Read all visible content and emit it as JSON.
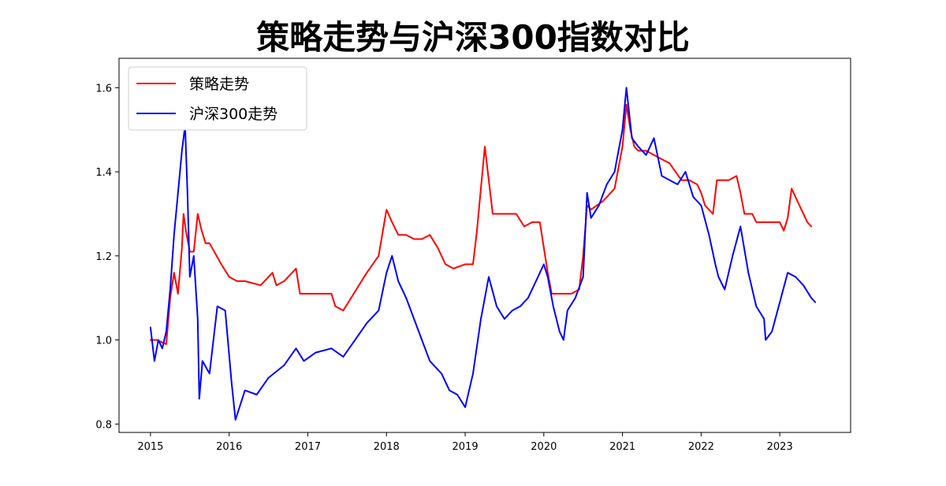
{
  "chart_data": {
    "type": "line",
    "title": "策略走势与沪深300指数对比",
    "xlabel": "",
    "ylabel": "",
    "xlim": [
      2014.6,
      2023.9
    ],
    "ylim": [
      0.78,
      1.67
    ],
    "x_ticks": [
      "2015",
      "2016",
      "2017",
      "2018",
      "2019",
      "2020",
      "2021",
      "2022",
      "2023"
    ],
    "y_ticks": [
      "0.8",
      "1.0",
      "1.2",
      "1.4",
      "1.6"
    ],
    "grid": false,
    "legend_position": "top-left",
    "series": [
      {
        "name": "策略走势",
        "color": "#ff0000",
        "x": [
          2015.0,
          2015.08,
          2015.2,
          2015.25,
          2015.3,
          2015.35,
          2015.4,
          2015.42,
          2015.45,
          2015.5,
          2015.55,
          2015.6,
          2015.65,
          2015.7,
          2015.75,
          2015.9,
          2016.0,
          2016.1,
          2016.2,
          2016.4,
          2016.55,
          2016.6,
          2016.7,
          2016.85,
          2016.9,
          2017.0,
          2017.3,
          2017.35,
          2017.45,
          2017.55,
          2017.65,
          2017.75,
          2017.9,
          2018.0,
          2018.07,
          2018.15,
          2018.25,
          2018.35,
          2018.45,
          2018.55,
          2018.65,
          2018.75,
          2018.85,
          2019.0,
          2019.1,
          2019.15,
          2019.2,
          2019.25,
          2019.3,
          2019.35,
          2019.5,
          2019.65,
          2019.75,
          2019.85,
          2019.95,
          2020.05,
          2020.1,
          2020.2,
          2020.35,
          2020.45,
          2020.5,
          2020.55,
          2020.6,
          2020.75,
          2020.9,
          2021.0,
          2021.05,
          2021.1,
          2021.15,
          2021.2,
          2021.3,
          2021.4,
          2021.5,
          2021.6,
          2021.75,
          2021.85,
          2021.95,
          2022.0,
          2022.05,
          2022.15,
          2022.2,
          2022.35,
          2022.45,
          2022.5,
          2022.55,
          2022.65,
          2022.7,
          2022.85,
          2022.95,
          2023.0,
          2023.05,
          2023.1,
          2023.15,
          2023.25,
          2023.35,
          2023.4
        ],
        "values": [
          1.0,
          1.0,
          0.99,
          1.1,
          1.16,
          1.11,
          1.22,
          1.3,
          1.26,
          1.21,
          1.21,
          1.3,
          1.26,
          1.23,
          1.23,
          1.18,
          1.15,
          1.14,
          1.14,
          1.13,
          1.16,
          1.13,
          1.14,
          1.17,
          1.11,
          1.11,
          1.11,
          1.08,
          1.07,
          1.1,
          1.13,
          1.16,
          1.2,
          1.31,
          1.28,
          1.25,
          1.25,
          1.24,
          1.24,
          1.25,
          1.22,
          1.18,
          1.17,
          1.18,
          1.18,
          1.26,
          1.36,
          1.46,
          1.38,
          1.3,
          1.3,
          1.3,
          1.27,
          1.28,
          1.28,
          1.16,
          1.11,
          1.11,
          1.11,
          1.12,
          1.2,
          1.32,
          1.31,
          1.33,
          1.36,
          1.46,
          1.56,
          1.5,
          1.46,
          1.45,
          1.45,
          1.44,
          1.43,
          1.42,
          1.38,
          1.38,
          1.37,
          1.35,
          1.32,
          1.3,
          1.38,
          1.38,
          1.39,
          1.35,
          1.3,
          1.3,
          1.28,
          1.28,
          1.28,
          1.28,
          1.26,
          1.29,
          1.36,
          1.32,
          1.28,
          1.27
        ]
      },
      {
        "name": "沪深300走势",
        "color": "#0000ff",
        "x": [
          2015.0,
          2015.05,
          2015.1,
          2015.15,
          2015.2,
          2015.25,
          2015.3,
          2015.35,
          2015.4,
          2015.44,
          2015.47,
          2015.5,
          2015.55,
          2015.6,
          2015.62,
          2015.66,
          2015.75,
          2015.85,
          2015.95,
          2016.03,
          2016.08,
          2016.2,
          2016.35,
          2016.5,
          2016.7,
          2016.85,
          2016.95,
          2017.1,
          2017.3,
          2017.45,
          2017.6,
          2017.75,
          2017.9,
          2018.0,
          2018.07,
          2018.15,
          2018.25,
          2018.35,
          2018.45,
          2018.55,
          2018.7,
          2018.8,
          2018.9,
          2019.0,
          2019.1,
          2019.2,
          2019.3,
          2019.4,
          2019.5,
          2019.6,
          2019.7,
          2019.8,
          2019.9,
          2020.0,
          2020.05,
          2020.12,
          2020.2,
          2020.25,
          2020.3,
          2020.4,
          2020.5,
          2020.55,
          2020.6,
          2020.7,
          2020.8,
          2020.9,
          2021.0,
          2021.05,
          2021.12,
          2021.2,
          2021.3,
          2021.4,
          2021.5,
          2021.6,
          2021.7,
          2021.8,
          2021.9,
          2022.0,
          2022.1,
          2022.18,
          2022.22,
          2022.3,
          2022.4,
          2022.5,
          2022.6,
          2022.7,
          2022.8,
          2022.82,
          2022.9,
          2023.0,
          2023.1,
          2023.2,
          2023.3,
          2023.4,
          2023.45
        ],
        "values": [
          1.03,
          0.95,
          1.0,
          0.98,
          1.02,
          1.12,
          1.25,
          1.35,
          1.45,
          1.51,
          1.35,
          1.15,
          1.2,
          1.05,
          0.86,
          0.95,
          0.92,
          1.08,
          1.07,
          0.9,
          0.81,
          0.88,
          0.87,
          0.91,
          0.94,
          0.98,
          0.95,
          0.97,
          0.98,
          0.96,
          1.0,
          1.04,
          1.07,
          1.16,
          1.2,
          1.14,
          1.1,
          1.05,
          1.0,
          0.95,
          0.92,
          0.88,
          0.87,
          0.84,
          0.92,
          1.05,
          1.15,
          1.08,
          1.05,
          1.07,
          1.08,
          1.1,
          1.14,
          1.18,
          1.15,
          1.08,
          1.02,
          1.0,
          1.07,
          1.1,
          1.15,
          1.35,
          1.29,
          1.32,
          1.37,
          1.4,
          1.5,
          1.6,
          1.48,
          1.46,
          1.44,
          1.48,
          1.39,
          1.38,
          1.37,
          1.4,
          1.34,
          1.32,
          1.25,
          1.18,
          1.15,
          1.12,
          1.2,
          1.27,
          1.16,
          1.08,
          1.05,
          1.0,
          1.02,
          1.09,
          1.16,
          1.15,
          1.13,
          1.1,
          1.09
        ]
      }
    ]
  }
}
